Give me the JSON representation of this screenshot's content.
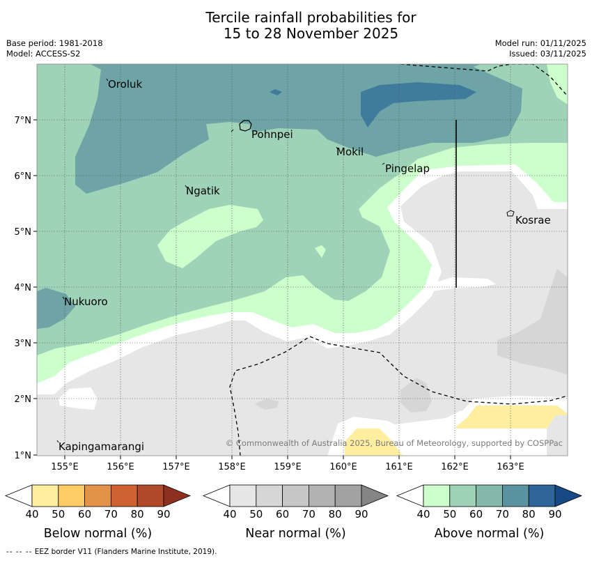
{
  "title": {
    "line1": "Tercile rainfall probabilities for",
    "line2": "15 to 28 November 2025"
  },
  "meta": {
    "base_period": "Base period: 1981-2018",
    "model": "Model: ACCESS-S2",
    "model_run": "Model run: 01/11/2025",
    "issued": "Issued: 03/11/2025"
  },
  "map": {
    "lat_labels": [
      "7°N",
      "6°N",
      "5°N",
      "4°N",
      "3°N",
      "2°N",
      "1°N"
    ],
    "lon_labels": [
      "155°E",
      "156°E",
      "157°E",
      "158°E",
      "159°E",
      "160°E",
      "161°E",
      "162°E",
      "163°E"
    ],
    "places": [
      "Oroluk",
      "Pohnpei",
      "Mokil",
      "Pingelap",
      "Ngatik",
      "Kosrae",
      "Nukuoro",
      "Kapingamarangi"
    ],
    "copyright": "© Commonwealth of Australia 2025, Bureau of Meteorology, supported by COSPPac"
  },
  "legends": {
    "ticks": [
      "40",
      "50",
      "60",
      "70",
      "80",
      "90"
    ],
    "below": {
      "title": "Below normal (%)",
      "colors": [
        "#ffeda0",
        "#fecb64",
        "#e3924a",
        "#cf6232",
        "#b04a2a",
        "#8e3020"
      ]
    },
    "near": {
      "title": "Near normal (%)",
      "colors": [
        "#e6e6e6",
        "#d6d6d6",
        "#c6c6c6",
        "#b3b3b3",
        "#a2a2a2",
        "#858585"
      ]
    },
    "above": {
      "title": "Above normal (%)",
      "colors": [
        "#ccffcc",
        "#9ed3b8",
        "#84b8a8",
        "#5b94a0",
        "#2f6599",
        "#174a84"
      ]
    }
  },
  "footer": {
    "dashes": "--  --  --",
    "text": "EEZ border V11 (Flanders Marine Institute, 2019)."
  }
}
